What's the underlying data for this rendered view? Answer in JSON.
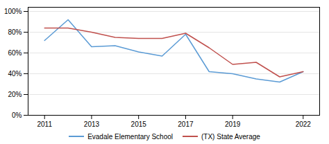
{
  "chart_data": {
    "type": "line",
    "x": [
      2011,
      2012,
      2013,
      2014,
      2015,
      2016,
      2017,
      2018,
      2019,
      2020,
      2021,
      2022
    ],
    "series": [
      {
        "name": "Evadale Elementary School",
        "color": "#5b9bd5",
        "values": [
          0.72,
          0.92,
          0.66,
          0.67,
          0.61,
          0.57,
          0.78,
          0.42,
          0.4,
          0.35,
          0.32,
          0.42
        ]
      },
      {
        "name": "(TX) State Average",
        "color": "#c0504d",
        "values": [
          0.84,
          0.84,
          0.8,
          0.75,
          0.74,
          0.74,
          0.79,
          0.65,
          0.49,
          0.51,
          0.37,
          0.42
        ]
      }
    ],
    "xlim": [
      2010.3,
      2022.7
    ],
    "xticks": [
      2011,
      2013,
      2015,
      2017,
      2019,
      2022
    ],
    "ylim": [
      0.0,
      1.04
    ],
    "yticks": [
      {
        "value": 0.0,
        "label": "0%"
      },
      {
        "value": 0.2,
        "label": "20%"
      },
      {
        "value": 0.4,
        "label": "40%"
      },
      {
        "value": 0.6,
        "label": "60%"
      },
      {
        "value": 0.8,
        "label": "80%"
      },
      {
        "value": 1.0,
        "label": "100%"
      }
    ],
    "grid": true,
    "legend": "bottom"
  }
}
